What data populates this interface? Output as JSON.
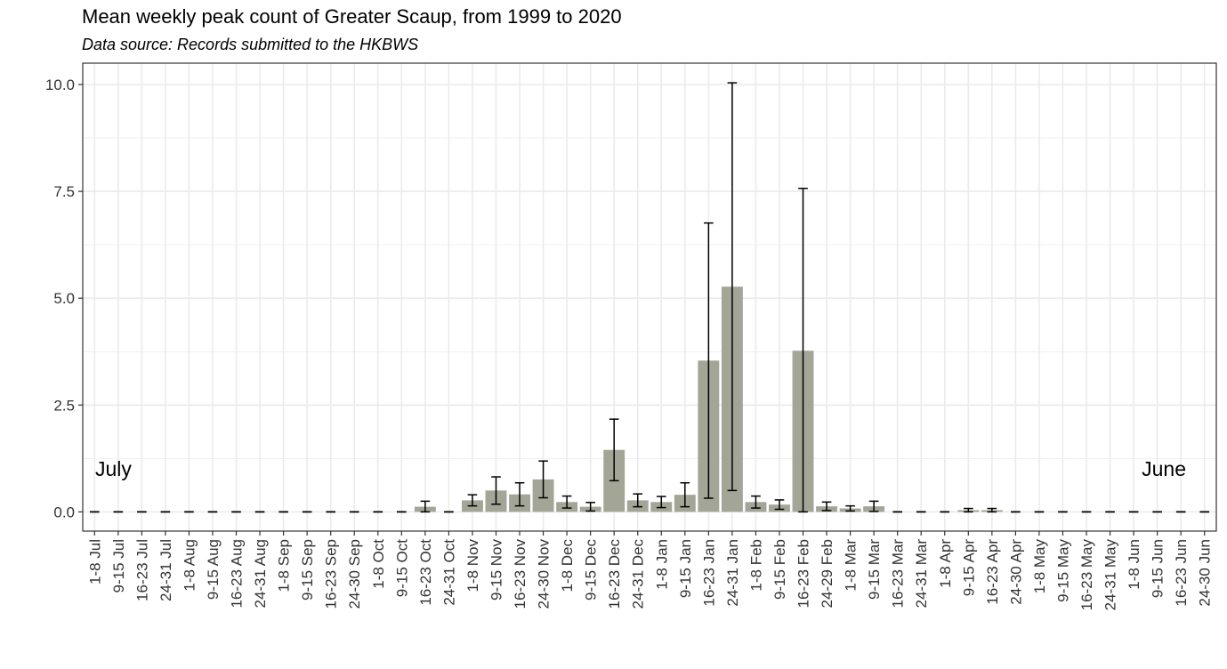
{
  "title": "Mean weekly peak count of Greater Scaup, from 1999 to 2020",
  "subtitle": "Data source: Records submitted to the HKBWS",
  "annotations": {
    "left": "July",
    "right": "June"
  },
  "colors": {
    "bar": "#a3a596",
    "panel_border": "#333333",
    "grid": "#ebebeb",
    "errorbar": "#000000"
  },
  "chart_data": {
    "type": "bar",
    "title": "Mean weekly peak count of Greater Scaup, from 1999 to 2020",
    "subtitle": "Data source: Records submitted to the HKBWS",
    "xlabel": "",
    "ylabel": "",
    "ylim": [
      -0.45,
      10.5
    ],
    "yticks": [
      "0.0",
      "2.5",
      "5.0",
      "7.5",
      "10.0"
    ],
    "ytick_values": [
      0,
      2.5,
      5,
      7.5,
      10
    ],
    "grid": true,
    "legend": "none",
    "categories": [
      "1-8 Jul",
      "9-15 Jul",
      "16-23 Jul",
      "24-31 Jul",
      "1-8 Aug",
      "9-15 Aug",
      "16-23 Aug",
      "24-31 Aug",
      "1-8 Sep",
      "9-15 Sep",
      "16-23 Sep",
      "24-30 Sep",
      "1-8 Oct",
      "9-15 Oct",
      "16-23 Oct",
      "24-31 Oct",
      "1-8 Nov",
      "9-15 Nov",
      "16-23 Nov",
      "24-30 Nov",
      "1-8 Dec",
      "9-15 Dec",
      "16-23 Dec",
      "24-31 Dec",
      "1-8 Jan",
      "9-15 Jan",
      "16-23 Jan",
      "24-31 Jan",
      "1-8 Feb",
      "9-15 Feb",
      "16-23 Feb",
      "24-29 Feb",
      "1-8 Mar",
      "9-15 Mar",
      "16-23 Mar",
      "24-31 Mar",
      "1-8 Apr",
      "9-15 Apr",
      "16-23 Apr",
      "24-30 Apr",
      "1-8 May",
      "9-15 May",
      "16-23 May",
      "24-31 May",
      "1-8 Jun",
      "9-15 Jun",
      "16-23 Jun",
      "24-30 Jun"
    ],
    "values": [
      0,
      0,
      0,
      0,
      0,
      0,
      0,
      0,
      0,
      0,
      0,
      0,
      0,
      0,
      0.12,
      0,
      0.27,
      0.5,
      0.41,
      0.76,
      0.23,
      0.12,
      1.45,
      0.27,
      0.23,
      0.4,
      3.54,
      5.27,
      0.23,
      0.17,
      3.77,
      0.13,
      0.08,
      0.13,
      0,
      0,
      0,
      0.04,
      0.04,
      0,
      0,
      0,
      0,
      0,
      0,
      0,
      0,
      0
    ],
    "errors": [
      0,
      0,
      0,
      0,
      0,
      0,
      0,
      0,
      0,
      0,
      0,
      0,
      0,
      0,
      0.13,
      0,
      0.13,
      0.32,
      0.27,
      0.43,
      0.14,
      0.1,
      0.72,
      0.15,
      0.13,
      0.28,
      3.22,
      4.77,
      0.14,
      0.11,
      3.8,
      0.1,
      0.06,
      0.12,
      0,
      0,
      0,
      0.04,
      0.04,
      0,
      0,
      0,
      0,
      0,
      0,
      0,
      0,
      0
    ]
  }
}
